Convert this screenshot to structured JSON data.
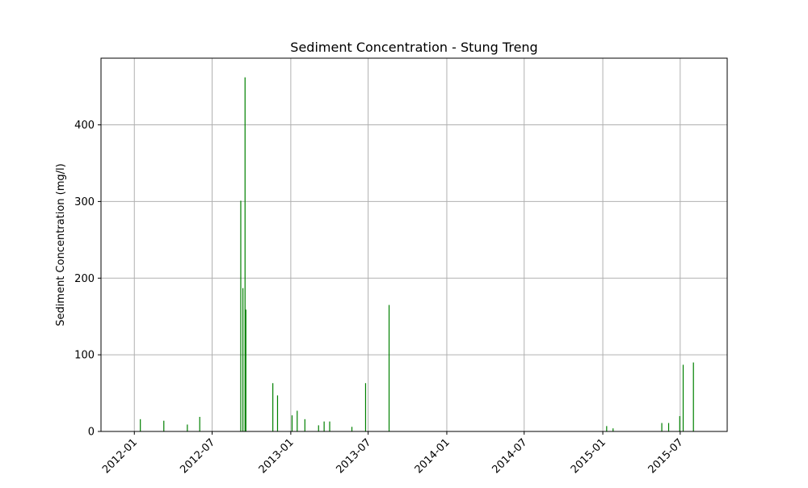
{
  "chart_data": {
    "type": "bar",
    "title": "Sediment Concentration - Stung Treng",
    "xlabel": "",
    "ylabel": "Sediment Concentration (mg/l)",
    "x_axis_type": "date",
    "xlim": [
      "2011-10-15",
      "2015-10-19"
    ],
    "ylim": [
      0,
      487
    ],
    "yticks": [
      0,
      100,
      200,
      300,
      400
    ],
    "xticks": [
      "2012-01",
      "2012-07",
      "2013-01",
      "2013-07",
      "2014-01",
      "2014-07",
      "2015-01",
      "2015-07"
    ],
    "grid": true,
    "bar_color": "#008000",
    "points": [
      {
        "date": "2012-01-15",
        "value": 16
      },
      {
        "date": "2012-03-10",
        "value": 14
      },
      {
        "date": "2012-05-04",
        "value": 9
      },
      {
        "date": "2012-06-02",
        "value": 19
      },
      {
        "date": "2012-09-06",
        "value": 301
      },
      {
        "date": "2012-09-11",
        "value": 187
      },
      {
        "date": "2012-09-16",
        "value": 462
      },
      {
        "date": "2012-09-18",
        "value": 159
      },
      {
        "date": "2012-11-20",
        "value": 63
      },
      {
        "date": "2012-12-01",
        "value": 47
      },
      {
        "date": "2013-01-04",
        "value": 21
      },
      {
        "date": "2013-01-16",
        "value": 27
      },
      {
        "date": "2013-02-03",
        "value": 16
      },
      {
        "date": "2013-03-07",
        "value": 8
      },
      {
        "date": "2013-03-20",
        "value": 13
      },
      {
        "date": "2013-04-02",
        "value": 13
      },
      {
        "date": "2013-05-24",
        "value": 6
      },
      {
        "date": "2013-06-25",
        "value": 63
      },
      {
        "date": "2013-08-19",
        "value": 165
      },
      {
        "date": "2015-01-10",
        "value": 7
      },
      {
        "date": "2015-01-25",
        "value": 4
      },
      {
        "date": "2015-05-19",
        "value": 11
      },
      {
        "date": "2015-06-04",
        "value": 11
      },
      {
        "date": "2015-06-30",
        "value": 20
      },
      {
        "date": "2015-07-08",
        "value": 87
      },
      {
        "date": "2015-08-01",
        "value": 90
      }
    ]
  }
}
